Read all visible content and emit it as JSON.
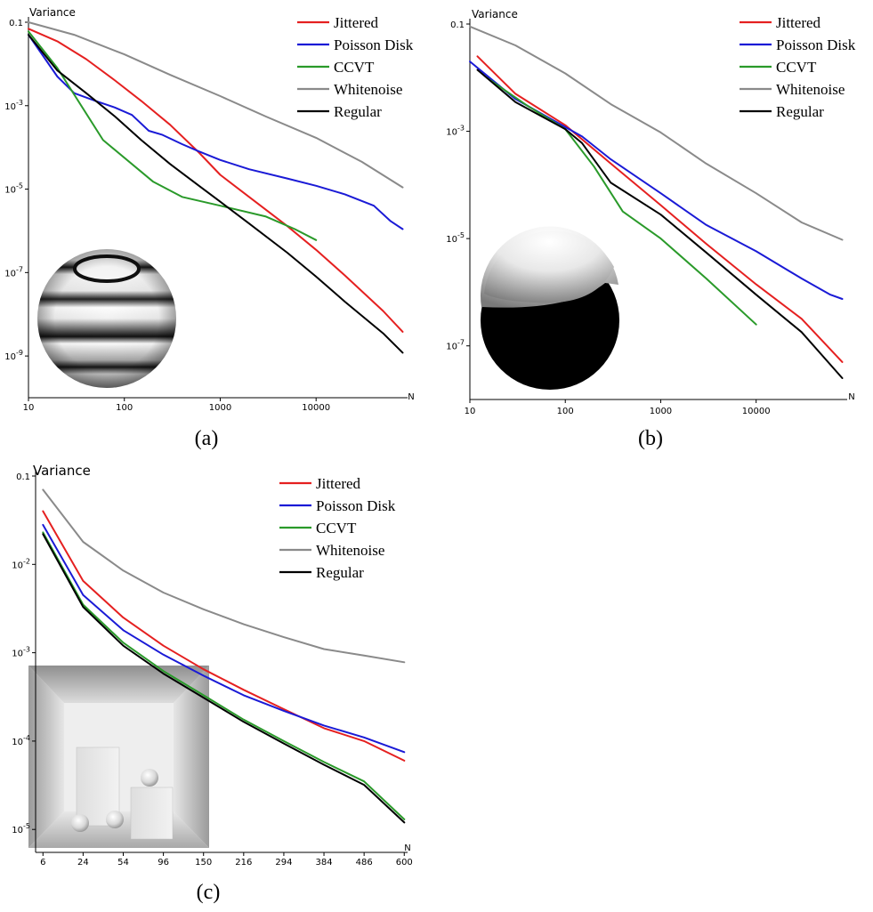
{
  "chart_data": [
    {
      "panel": "(a)",
      "type": "line",
      "xscale": "log",
      "yscale": "log",
      "ylabel": "Variance",
      "xlabel": "N",
      "xlim": [
        10,
        90000
      ],
      "ylim": [
        1e-10,
        0.1
      ],
      "xticks": [
        {
          "v": 10,
          "label": "10"
        },
        {
          "v": 100,
          "label": "100"
        },
        {
          "v": 1000,
          "label": "1000"
        },
        {
          "v": 10000,
          "label": "10000"
        }
      ],
      "yticks": [
        {
          "v": 0.1,
          "label": "0.1",
          "base": "0.1"
        },
        {
          "v": 0.001,
          "base": "10",
          "exp": "-3"
        },
        {
          "v": 1e-05,
          "base": "10",
          "exp": "-5"
        },
        {
          "v": 1e-07,
          "base": "10",
          "exp": "-7"
        },
        {
          "v": 1e-09,
          "base": "10",
          "exp": "-9"
        }
      ],
      "legend_position": "top-right",
      "inset": "sphere-bands",
      "series": [
        {
          "name": "Jittered",
          "color": "#e52020",
          "x": [
            10,
            20,
            40,
            80,
            150,
            300,
            600,
            1000,
            2000,
            5000,
            10000,
            20000,
            50000,
            80000
          ],
          "y": [
            0.07,
            0.035,
            0.013,
            0.004,
            0.0013,
            0.00035,
            7.5e-05,
            2.2e-05,
            6.5e-06,
            1.3e-06,
            3.5e-07,
            8.5e-08,
            1.2e-08,
            3.8e-09
          ]
        },
        {
          "name": "Poisson Disk",
          "color": "#1a1ad6",
          "x": [
            10,
            20,
            30,
            50,
            80,
            120,
            180,
            250,
            400,
            600,
            1000,
            2000,
            5000,
            10000,
            20000,
            40000,
            60000,
            80000
          ],
          "y": [
            0.05,
            0.005,
            0.002,
            0.0013,
            0.0009,
            0.0006,
            0.00025,
            0.0002,
            0.00012,
            8e-05,
            5e-05,
            3e-05,
            1.8e-05,
            1.2e-05,
            7.5e-06,
            4e-06,
            1.7e-06,
            1.1e-06
          ]
        },
        {
          "name": "CCVT",
          "color": "#2a9a2a",
          "x": [
            10,
            20,
            60,
            200,
            400,
            1000,
            3000,
            6000,
            10000
          ],
          "y": [
            0.06,
            0.008,
            0.00015,
            1.5e-05,
            6.5e-06,
            4e-06,
            2.2e-06,
            1.1e-06,
            6e-07
          ]
        },
        {
          "name": "Whitenoise",
          "color": "#8a8a8a",
          "x": [
            10,
            30,
            100,
            300,
            1000,
            3000,
            10000,
            30000,
            80000
          ],
          "y": [
            0.1,
            0.05,
            0.017,
            0.0055,
            0.0017,
            0.00055,
            0.00017,
            4.5e-05,
            1.1e-05
          ]
        },
        {
          "name": "Regular",
          "color": "#000000",
          "x": [
            10,
            20,
            40,
            80,
            150,
            300,
            600,
            1000,
            2000,
            5000,
            10000,
            20000,
            50000,
            80000
          ],
          "y": [
            0.05,
            0.007,
            0.002,
            0.00055,
            0.00015,
            4e-05,
            1.2e-05,
            5e-06,
            1.5e-06,
            3e-07,
            8e-08,
            2e-08,
            3.5e-09,
            1.2e-09
          ]
        }
      ]
    },
    {
      "panel": "(b)",
      "type": "line",
      "xscale": "log",
      "yscale": "log",
      "ylabel": "Variance",
      "xlabel": "N",
      "xlim": [
        10,
        90000
      ],
      "ylim": [
        1e-08,
        0.1
      ],
      "xticks": [
        {
          "v": 10,
          "label": "10"
        },
        {
          "v": 100,
          "label": "100"
        },
        {
          "v": 1000,
          "label": "1000"
        },
        {
          "v": 10000,
          "label": "10000"
        }
      ],
      "yticks": [
        {
          "v": 0.1,
          "label": "0.1",
          "base": "0.1"
        },
        {
          "v": 0.001,
          "base": "10",
          "exp": "-3"
        },
        {
          "v": 1e-05,
          "base": "10",
          "exp": "-5"
        },
        {
          "v": 1e-07,
          "base": "10",
          "exp": "-7"
        }
      ],
      "legend_position": "top-right",
      "inset": "sphere-half",
      "series": [
        {
          "name": "Jittered",
          "color": "#e52020",
          "x": [
            12,
            30,
            100,
            300,
            1000,
            3000,
            10000,
            30000,
            80000
          ],
          "y": [
            0.025,
            0.005,
            0.0013,
            0.00025,
            4.2e-05,
            8e-06,
            1.4e-06,
            3.2e-07,
            5e-08
          ]
        },
        {
          "name": "Poisson Disk",
          "color": "#1a1ad6",
          "x": [
            10,
            30,
            100,
            150,
            300,
            1000,
            3000,
            10000,
            30000,
            60000,
            80000
          ],
          "y": [
            0.02,
            0.004,
            0.0012,
            0.0008,
            0.0003,
            7e-05,
            1.8e-05,
            5.8e-06,
            1.8e-06,
            9e-07,
            7.5e-07
          ]
        },
        {
          "name": "CCVT",
          "color": "#2a9a2a",
          "x": [
            15,
            40,
            100,
            200,
            400,
            1000,
            3000,
            10000
          ],
          "y": [
            0.01,
            0.003,
            0.0011,
            0.00022,
            3.2e-05,
            1e-05,
            1.8e-06,
            2.5e-07
          ]
        },
        {
          "name": "Whitenoise",
          "color": "#8a8a8a",
          "x": [
            10,
            30,
            100,
            300,
            1000,
            3000,
            10000,
            30000,
            80000
          ],
          "y": [
            0.09,
            0.04,
            0.012,
            0.0032,
            0.00095,
            0.00025,
            7e-05,
            2e-05,
            9.5e-06
          ]
        },
        {
          "name": "Regular",
          "color": "#000000",
          "x": [
            12,
            30,
            100,
            150,
            300,
            1000,
            3000,
            10000,
            30000,
            80000
          ],
          "y": [
            0.014,
            0.0035,
            0.0011,
            0.0006,
            0.00011,
            2.8e-05,
            5.5e-06,
            9e-07,
            1.8e-07,
            2.5e-08
          ]
        }
      ]
    },
    {
      "panel": "(c)",
      "type": "line",
      "xscale": "sqrt",
      "yscale": "log",
      "ylabel": "Variance",
      "xlabel": "N",
      "xlim": [
        4,
        610
      ],
      "ylim": [
        5.5e-06,
        0.1
      ],
      "xticks": [
        {
          "v": 6,
          "label": "6"
        },
        {
          "v": 24,
          "label": "24"
        },
        {
          "v": 54,
          "label": "54"
        },
        {
          "v": 96,
          "label": "96"
        },
        {
          "v": 150,
          "label": "150"
        },
        {
          "v": 216,
          "label": "216"
        },
        {
          "v": 294,
          "label": "294"
        },
        {
          "v": 384,
          "label": "384"
        },
        {
          "v": 486,
          "label": "486"
        },
        {
          "v": 600,
          "label": "600"
        }
      ],
      "yticks": [
        {
          "v": 0.1,
          "label": "0.1",
          "base": "0.1"
        },
        {
          "v": 0.01,
          "base": "10",
          "exp": "-2"
        },
        {
          "v": 0.001,
          "base": "10",
          "exp": "-3"
        },
        {
          "v": 0.0001,
          "base": "10",
          "exp": "-4"
        },
        {
          "v": 1e-05,
          "base": "10",
          "exp": "-5"
        }
      ],
      "legend_position": "top-right",
      "inset": "cornell-box",
      "series": [
        {
          "name": "Jittered",
          "color": "#e52020",
          "x": [
            6,
            24,
            54,
            96,
            150,
            216,
            294,
            384,
            486,
            600
          ],
          "y": [
            0.04,
            0.0065,
            0.0025,
            0.0012,
            0.00065,
            0.00038,
            0.00023,
            0.00014,
            0.0001,
            6e-05
          ]
        },
        {
          "name": "Poisson Disk",
          "color": "#1a1ad6",
          "x": [
            6,
            24,
            54,
            96,
            150,
            216,
            294,
            384,
            486,
            600
          ],
          "y": [
            0.028,
            0.0045,
            0.0018,
            0.00095,
            0.00055,
            0.00033,
            0.00022,
            0.00015,
            0.00011,
            7.5e-05
          ]
        },
        {
          "name": "CCVT",
          "color": "#2a9a2a",
          "x": [
            6,
            24,
            54,
            96,
            150,
            216,
            294,
            384,
            486,
            600
          ],
          "y": [
            0.023,
            0.0035,
            0.0013,
            0.00062,
            0.00033,
            0.000175,
            0.0001,
            5.8e-05,
            3.5e-05,
            1.3e-05
          ]
        },
        {
          "name": "Whitenoise",
          "color": "#8a8a8a",
          "x": [
            6,
            24,
            54,
            96,
            150,
            216,
            294,
            384,
            486,
            600
          ],
          "y": [
            0.07,
            0.018,
            0.0085,
            0.0048,
            0.0031,
            0.0021,
            0.0015,
            0.0011,
            0.00093,
            0.00078
          ]
        },
        {
          "name": "Regular",
          "color": "#000000",
          "x": [
            6,
            24,
            54,
            96,
            150,
            216,
            294,
            384,
            486,
            600
          ],
          "y": [
            0.022,
            0.0033,
            0.0012,
            0.00058,
            0.00031,
            0.000165,
            9.4e-05,
            5.4e-05,
            3.2e-05,
            1.2e-05
          ]
        }
      ]
    }
  ]
}
